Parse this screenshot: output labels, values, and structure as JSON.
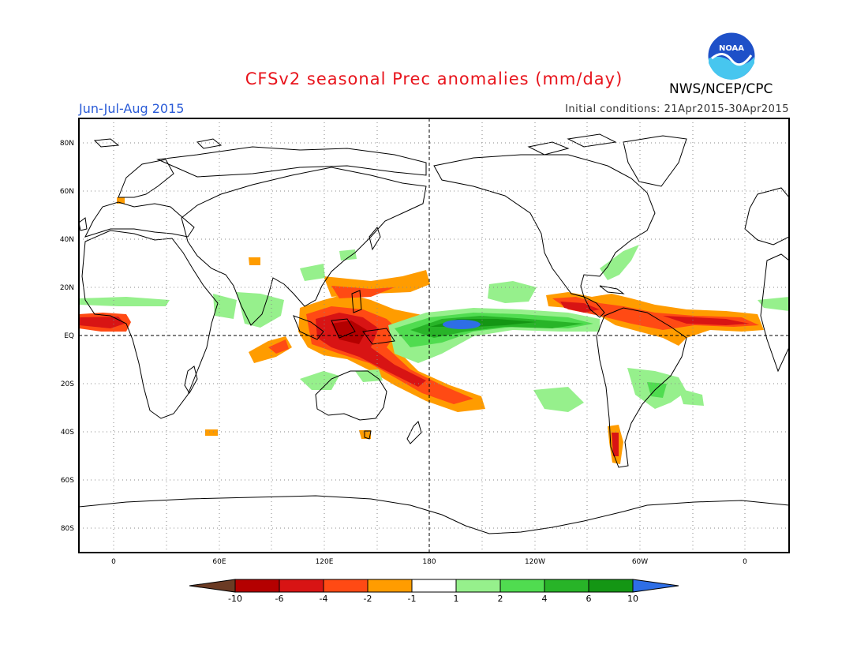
{
  "header": {
    "title": "CFSv2 seasonal Prec anomalies (mm/day)",
    "period": "Jun-Jul-Aug 2015",
    "initial_conditions": "Initial conditions: 21Apr2015-30Apr2015",
    "agency": "NWS/NCEP/CPC",
    "logo_text": "NOAA"
  },
  "map": {
    "lat_labels": [
      "80N",
      "60N",
      "40N",
      "20N",
      "EQ",
      "20S",
      "40S",
      "60S",
      "80S"
    ],
    "lon_labels": [
      "0",
      "60E",
      "120E",
      "180",
      "120W",
      "60W",
      "0"
    ]
  },
  "legend": {
    "labels": [
      "-10",
      "-6",
      "-4",
      "-2",
      "-1",
      "1",
      "2",
      "4",
      "6",
      "10"
    ],
    "colors": [
      "#6b3b24",
      "#b40000",
      "#d81414",
      "#ff4a14",
      "#ff9c00",
      "#ffffff",
      "#96f08c",
      "#50dc50",
      "#28b428",
      "#149614",
      "#2e6ee6"
    ]
  },
  "colors": {
    "title": "#e8141c",
    "period": "#2a5bd7",
    "coast": "#000000",
    "grid": "#888888"
  }
}
